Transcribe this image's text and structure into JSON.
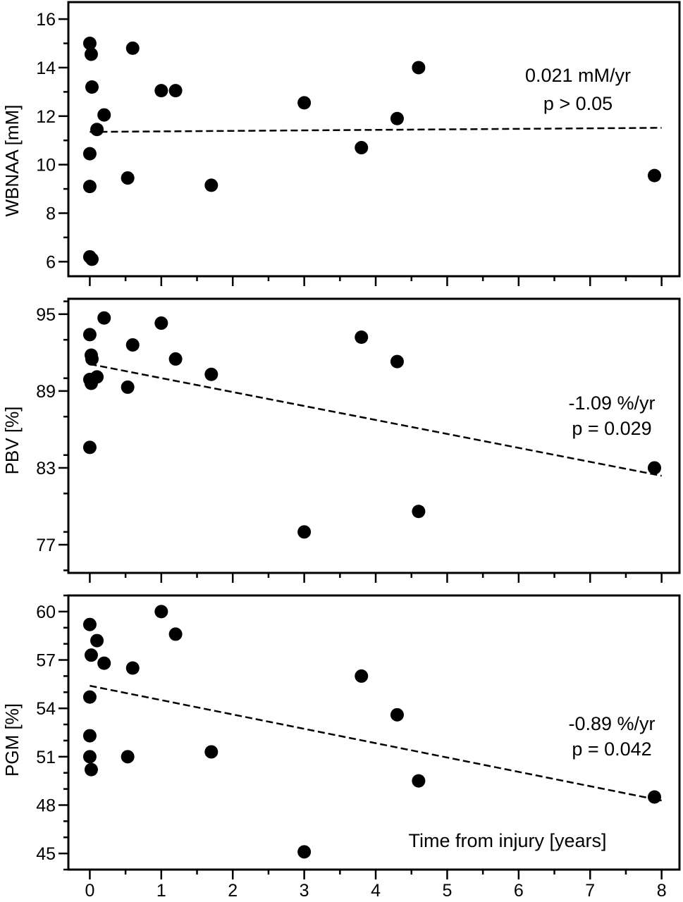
{
  "chart_data": [
    {
      "type": "scatter",
      "ylabel": "WBNAA [mM]",
      "ylim": [
        5.4,
        16.7
      ],
      "yticks": [
        6,
        8,
        10,
        12,
        14,
        16
      ],
      "xlim": [
        -0.3,
        8.25
      ],
      "x": [
        0,
        0.02,
        0.03,
        0.1,
        0.2,
        0,
        0,
        0,
        0.03,
        0.53,
        0.6,
        1.0,
        1.2,
        1.7,
        3.0,
        3.8,
        4.3,
        4.6,
        7.9
      ],
      "y": [
        15.0,
        14.55,
        13.2,
        11.45,
        12.05,
        10.45,
        9.1,
        6.2,
        6.1,
        9.45,
        14.8,
        13.05,
        13.05,
        9.15,
        12.55,
        10.7,
        11.9,
        14.0,
        9.55
      ],
      "regression": {
        "slope": 0.021,
        "intercept": 11.35
      },
      "annotation": [
        "0.021 mM/yr",
        "p > 0.05"
      ]
    },
    {
      "type": "scatter",
      "ylabel": "PBV [%]",
      "ylim": [
        74.8,
        96.2
      ],
      "yticks": [
        77,
        83,
        89,
        95
      ],
      "xlim": [
        -0.3,
        8.25
      ],
      "x": [
        0,
        0.02,
        0.03,
        0.1,
        0.2,
        0,
        0.02,
        0,
        0.53,
        0.6,
        1.0,
        1.2,
        1.7,
        3.0,
        3.8,
        4.3,
        4.6,
        7.9
      ],
      "y": [
        93.4,
        91.8,
        91.5,
        90.1,
        94.7,
        89.9,
        89.6,
        84.6,
        89.3,
        92.6,
        94.3,
        91.5,
        90.3,
        78.0,
        93.2,
        91.3,
        79.6,
        83.0
      ],
      "regression": {
        "slope": -1.09,
        "intercept": 91.1
      },
      "annotation": [
        "-1.09 %/yr",
        "p = 0.029"
      ]
    },
    {
      "type": "scatter",
      "ylabel": "PGM [%]",
      "ylim": [
        44.0,
        61.0
      ],
      "yticks": [
        45,
        48,
        51,
        54,
        57,
        60
      ],
      "xlim": [
        -0.3,
        8.25
      ],
      "x": [
        0,
        0.02,
        0.1,
        0.2,
        0,
        0,
        0,
        0.02,
        0.53,
        0.6,
        1.0,
        1.2,
        1.7,
        3.0,
        3.8,
        4.3,
        4.6,
        7.9
      ],
      "y": [
        59.2,
        57.3,
        58.2,
        56.8,
        54.7,
        52.3,
        51.0,
        50.2,
        51.0,
        56.5,
        60.0,
        58.6,
        51.3,
        45.1,
        56.0,
        53.6,
        49.5,
        48.5
      ],
      "regression": {
        "slope": -0.89,
        "intercept": 55.4
      },
      "annotation": [
        "-0.89 %/yr",
        "p = 0.042"
      ],
      "xlabel": "Time from injury [years]"
    }
  ],
  "x_axis": {
    "ticks": [
      0,
      1,
      2,
      3,
      4,
      5,
      6,
      7,
      8
    ]
  }
}
